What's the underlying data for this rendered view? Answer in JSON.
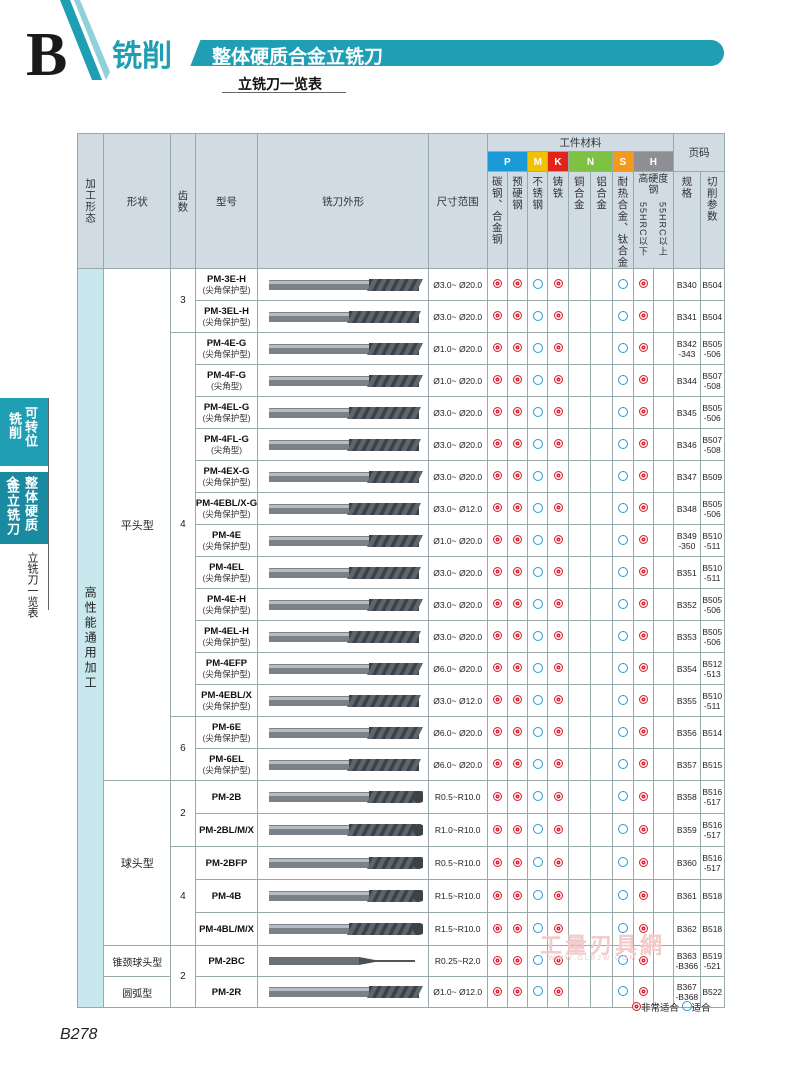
{
  "header": {
    "letter": "B",
    "chapter": "铣削",
    "section": "整体硬质合金立铣刀",
    "subsection": "立铣刀一览表"
  },
  "sidetabs": [
    {
      "line1": "铣削",
      "line2": "可转位"
    },
    {
      "line1": "金立铣刀",
      "line2": "整体硬质合"
    },
    {
      "line1": "立铣刀一览表"
    }
  ],
  "table": {
    "headers": {
      "form": "加工形态",
      "shape": "形状",
      "teeth": "齿数",
      "model": "型号",
      "profile": "铣刀外形",
      "range": "尺寸范围",
      "workpiece": "工件材料",
      "page": "页码",
      "spec": "规格",
      "cutting": "切削参数"
    },
    "materials": [
      {
        "letter": "P",
        "color": "#1a9ad6",
        "subs": [
          "碳钢、合金钢",
          "预硬钢"
        ]
      },
      {
        "letter": "M",
        "color": "#f2c200",
        "subs": [
          "不锈钢"
        ]
      },
      {
        "letter": "K",
        "color": "#e2231a",
        "subs": [
          "铸铁"
        ]
      },
      {
        "letter": "N",
        "color": "#7dc242",
        "subs": [
          "铜合金",
          "铝合金"
        ]
      },
      {
        "letter": "S",
        "color": "#f39a1e",
        "subs": [
          "耐热合金、钛合金"
        ]
      },
      {
        "letter": "H",
        "color": "#8e8e93",
        "subs": [
          "高硬度钢"
        ],
        "hsub": [
          "55HRC以下",
          "55HRC以上"
        ]
      }
    ],
    "form_main": "高性能通用加工",
    "shapes": [
      "平头型",
      "球头型",
      "锥颈球头型",
      "圆弧型"
    ],
    "rows": [
      {
        "model": "PM-3E-H",
        "note": "(尖角保护型)",
        "range": "Ø3.0~ Ø20.0",
        "spec": "B340",
        "cut": "B504",
        "teeth": "3",
        "m": "dd0d0000d"
      },
      {
        "model": "PM-3EL-H",
        "note": "(尖角保护型)",
        "range": "Ø3.0~ Ø20.0",
        "spec": "B341",
        "cut": "B504",
        "m": "dd0d0000d"
      },
      {
        "model": "PM-4E-G",
        "note": "(尖角保护型)",
        "range": "Ø1.0~ Ø20.0",
        "spec": "B342 -343",
        "cut": "B505 -506",
        "teeth": "4",
        "m": "dd0d0000d"
      },
      {
        "model": "PM-4F-G",
        "note": "(尖角型)",
        "range": "Ø1.0~ Ø20.0",
        "spec": "B344",
        "cut": "B507 -508",
        "m": "dd0d0000d"
      },
      {
        "model": "PM-4EL-G",
        "note": "(尖角保护型)",
        "range": "Ø3.0~ Ø20.0",
        "spec": "B345",
        "cut": "B505 -506",
        "m": "dd0d0000d"
      },
      {
        "model": "PM-4FL-G",
        "note": "(尖角型)",
        "range": "Ø3.0~ Ø20.0",
        "spec": "B346",
        "cut": "B507 -508",
        "m": "dd0d0000d"
      },
      {
        "model": "PM-4EX-G",
        "note": "(尖角保护型)",
        "range": "Ø3.0~ Ø20.0",
        "spec": "B347",
        "cut": "B509",
        "m": "dd0d0000d"
      },
      {
        "model": "PM-4EBL/X-G",
        "note": "(尖角保护型)",
        "range": "Ø3.0~ Ø12.0",
        "spec": "B348",
        "cut": "B505 -506",
        "m": "dd0d0000d"
      },
      {
        "model": "PM-4E",
        "note": "(尖角保护型)",
        "range": "Ø1.0~ Ø20.0",
        "spec": "B349 -350",
        "cut": "B510 -511",
        "m": "dd0d0000d"
      },
      {
        "model": "PM-4EL",
        "note": "(尖角保护型)",
        "range": "Ø3.0~ Ø20.0",
        "spec": "B351",
        "cut": "B510 -511",
        "m": "dd0d0000d"
      },
      {
        "model": "PM-4E-H",
        "note": "(尖角保护型)",
        "range": "Ø3.0~ Ø20.0",
        "spec": "B352",
        "cut": "B505 -506",
        "m": "dd0d0000d"
      },
      {
        "model": "PM-4EL-H",
        "note": "(尖角保护型)",
        "range": "Ø3.0~ Ø20.0",
        "spec": "B353",
        "cut": "B505 -506",
        "m": "dd0d0000d"
      },
      {
        "model": "PM-4EFP",
        "note": "(尖角保护型)",
        "range": "Ø6.0~ Ø20.0",
        "spec": "B354",
        "cut": "B512 -513",
        "m": "dd0d0000d"
      },
      {
        "model": "PM-4EBL/X",
        "note": "(尖角保护型)",
        "range": "Ø3.0~ Ø12.0",
        "spec": "B355",
        "cut": "B510 -511",
        "m": "dd0d0000d"
      },
      {
        "model": "PM-6E",
        "note": "(尖角保护型)",
        "range": "Ø6.0~ Ø20.0",
        "spec": "B356",
        "cut": "B514",
        "teeth": "6",
        "m": "dd0d0000d"
      },
      {
        "model": "PM-6EL",
        "note": "(尖角保护型)",
        "range": "Ø6.0~ Ø20.0",
        "spec": "B357",
        "cut": "B515",
        "m": "dd0d0000d"
      },
      {
        "model": "PM-2B",
        "note": "",
        "range": "R0.5~R10.0",
        "spec": "B358",
        "cut": "B516 -517",
        "teeth": "2",
        "m": "dd0d0000d"
      },
      {
        "model": "PM-2BL/M/X",
        "note": "",
        "range": "R1.0~R10.0",
        "spec": "B359",
        "cut": "B516 -517",
        "m": "dd0d0000d"
      },
      {
        "model": "PM-2BFP",
        "note": "",
        "range": "R0.5~R10.0",
        "spec": "B360",
        "cut": "B516 -517",
        "teeth": "4",
        "m": "dd0d0000d"
      },
      {
        "model": "PM-4B",
        "note": "",
        "range": "R1.5~R10.0",
        "spec": "B361",
        "cut": "B518",
        "m": "dd0d0000d"
      },
      {
        "model": "PM-4BL/M/X",
        "note": "",
        "range": "R1.5~R10.0",
        "spec": "B362",
        "cut": "B518",
        "m": "dd0d0000d"
      },
      {
        "model": "PM-2BC",
        "note": "",
        "range": "R0.25~R2.0",
        "spec": "B363 -B366",
        "cut": "B519 -521",
        "teeth": "2",
        "m": "dd0d0000d"
      },
      {
        "model": "PM-2R",
        "note": "",
        "range": "Ø1.0~ Ø12.0",
        "spec": "B367 -B368",
        "cut": "B522",
        "m": "dd0d0000d"
      }
    ]
  },
  "legend": {
    "very": "非常适合",
    "suit": "适合"
  },
  "watermark": "工量刃具網",
  "watermark_url": "WWW.GLBJW.COM",
  "page_number": "B278"
}
